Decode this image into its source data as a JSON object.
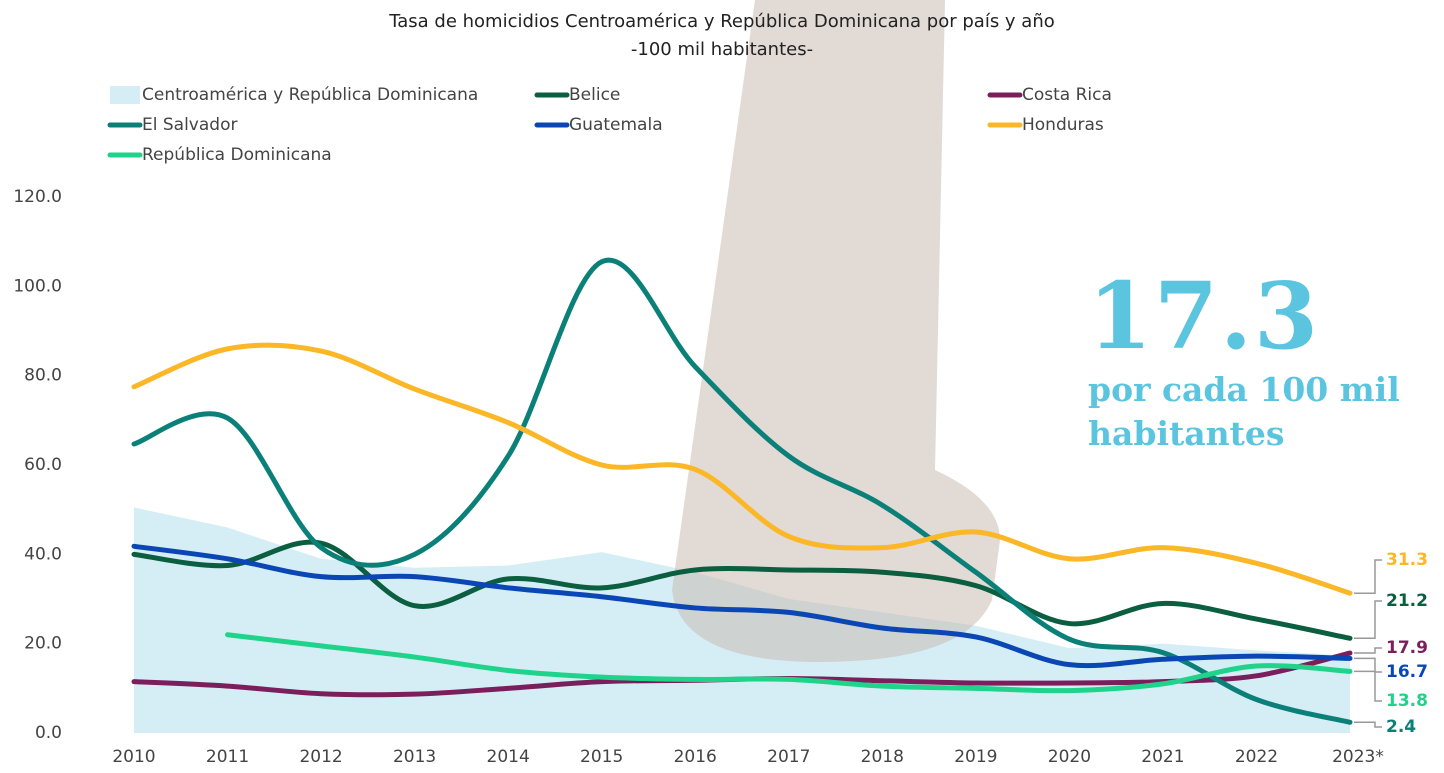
{
  "chart_data": {
    "type": "line",
    "title": "Tasa de homicidios Centroamérica y República Dominicana por país y año",
    "subtitle": "-100 mil habitantes-",
    "categories": [
      "2010",
      "2011",
      "2012",
      "2013",
      "2014",
      "2015",
      "2016",
      "2017",
      "2018",
      "2019",
      "2020",
      "2021",
      "2022",
      "2023*"
    ],
    "ylim": [
      0,
      120
    ],
    "yticks": [
      {
        "value": 0,
        "label": "0.0"
      },
      {
        "value": 20,
        "label": "20.0"
      },
      {
        "value": 40,
        "label": "40.0"
      },
      {
        "value": 60,
        "label": "60.0"
      },
      {
        "value": 80,
        "label": "80.0"
      },
      {
        "value": 100,
        "label": "100.0"
      },
      {
        "value": 120,
        "label": "120.0"
      }
    ],
    "annotation": "por cada 100 mil habitantes",
    "series": [
      {
        "name": "Centroamérica y República Dominicana",
        "kind": "area",
        "color": "#d5eef6",
        "values": [
          50.5,
          46,
          39,
          37,
          37.5,
          40.5,
          36,
          30,
          27,
          24,
          19,
          20,
          18.5,
          17.3
        ]
      },
      {
        "name": "Belice",
        "color": "#0b5e3f",
        "values": [
          40,
          37.5,
          42.5,
          28.5,
          34.5,
          32.5,
          36.5,
          36.5,
          36,
          33,
          24.5,
          29,
          25.5,
          21.2
        ]
      },
      {
        "name": "Costa Rica",
        "color": "#7a1f5c",
        "values": [
          11.5,
          10.5,
          8.8,
          8.7,
          10,
          11.5,
          11.8,
          12.2,
          11.7,
          11.2,
          11.2,
          11.5,
          12.8,
          17.9
        ]
      },
      {
        "name": "El Salvador",
        "color": "#0a8078",
        "values": [
          64.7,
          70.5,
          41.5,
          40,
          62,
          105.5,
          82,
          62,
          51,
          36,
          21,
          18,
          7.5,
          2.4
        ]
      },
      {
        "name": "Guatemala",
        "color": "#0a47b5",
        "values": [
          41.8,
          39,
          35,
          35,
          32.5,
          30.5,
          28,
          27,
          23.5,
          21.5,
          15.3,
          16.5,
          17.2,
          16.7
        ]
      },
      {
        "name": "Honduras",
        "color": "#fbb726",
        "values": [
          77.5,
          86,
          85.5,
          77,
          69.5,
          60,
          59,
          44,
          41.5,
          45,
          39,
          41.5,
          38,
          31.3
        ]
      },
      {
        "name": "República Dominicana",
        "color": "#1fd38a",
        "values": [
          null,
          22,
          19.5,
          17,
          14,
          12.5,
          12,
          12,
          10.5,
          10,
          9.5,
          11,
          15,
          13.8
        ]
      }
    ]
  }
}
